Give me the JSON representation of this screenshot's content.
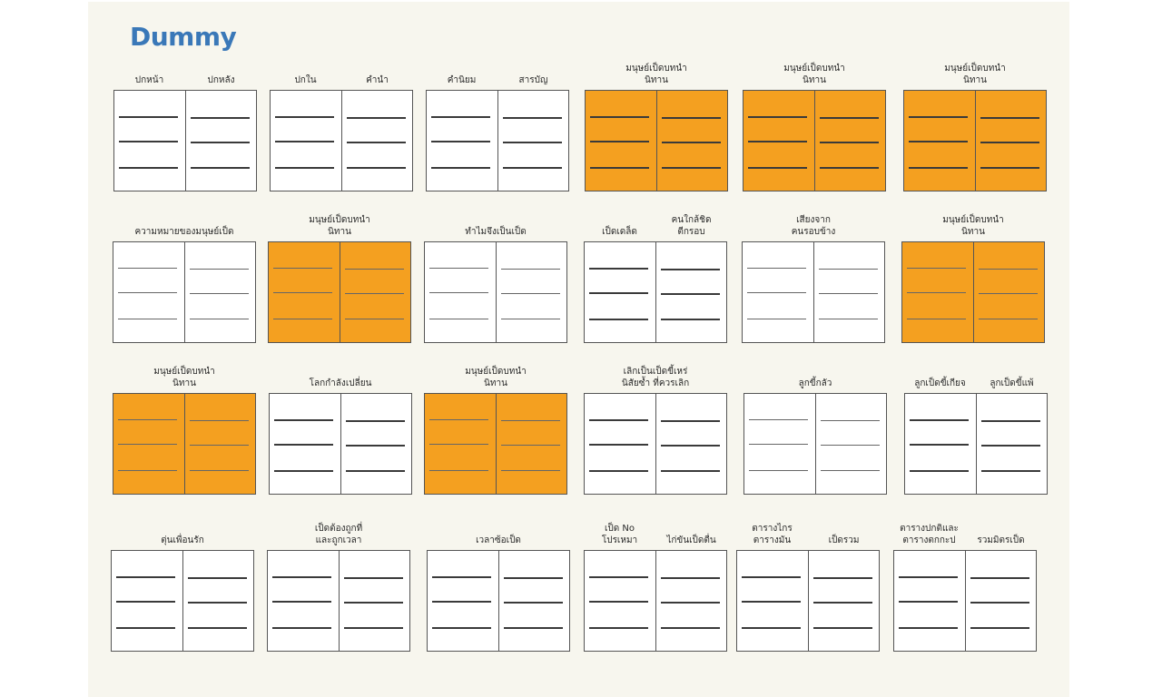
{
  "title": "Dummy",
  "colors": {
    "page": "#f7f6ee",
    "title": "#3a78b8",
    "filled_spread": "#f4a020",
    "blank_spread": "#ffffff"
  },
  "spreads": [
    {
      "labels": [
        "ปกหน้า",
        "ปกหลัง"
      ],
      "filled": false
    },
    {
      "labels": [
        "ปกใน",
        "คำนำ"
      ],
      "filled": false
    },
    {
      "labels": [
        "คำนิยม",
        "สารบัญ"
      ],
      "filled": false
    },
    {
      "labels": [
        "มนุษย์เป็ดบทนำ\nนิทาน"
      ],
      "filled": true
    },
    {
      "labels": [
        "มนุษย์เป็ดบทนำ\nนิทาน"
      ],
      "filled": true
    },
    {
      "labels": [
        "มนุษย์เป็ดบทนำ\nนิทาน"
      ],
      "filled": true
    },
    {
      "labels": [
        "ความหมายของมนุษย์เป็ด"
      ],
      "filled": false
    },
    {
      "labels": [
        "มนุษย์เป็ดบทนำ\nนิทาน"
      ],
      "filled": true
    },
    {
      "labels": [
        "ทำไมจึงเป็นเป็ด"
      ],
      "filled": false
    },
    {
      "labels": [
        "เป็ดเดล็ด",
        "คนใกล้ชิด\nตีกรอบ"
      ],
      "filled": false
    },
    {
      "labels": [
        "เสียงจาก\nคนรอบข้าง"
      ],
      "filled": false
    },
    {
      "labels": [
        "มนุษย์เป็ดบทนำ\nนิทาน"
      ],
      "filled": true
    },
    {
      "labels": [
        "มนุษย์เป็ดบทนำ\nนิทาน"
      ],
      "filled": true
    },
    {
      "labels": [
        "โลกกำลังเปลี่ยน"
      ],
      "filled": false
    },
    {
      "labels": [
        "มนุษย์เป็ดบทนำ\nนิทาน"
      ],
      "filled": true
    },
    {
      "labels": [
        "เลิกเป็นเป็ดขี้เหร่\nนิสัยซ้ำ ที่ควรเลิก"
      ],
      "filled": false
    },
    {
      "labels": [
        "ลูกขี้กลัว"
      ],
      "filled": false
    },
    {
      "labels": [
        "ลูกเป็ดขี้เกียจ",
        "ลูกเป็ดขี้แพ้"
      ],
      "filled": false
    },
    {
      "labels": [
        "ตุ่นเพื่อนรัก"
      ],
      "filled": false
    },
    {
      "labels": [
        "เป็ดต้องถูกที่\nและถูกเวลา"
      ],
      "filled": false
    },
    {
      "labels": [
        "เวลาซ้อเป็ด"
      ],
      "filled": false
    },
    {
      "labels": [
        "เป็ด No\nโปรเหมา",
        "ไก่ขันเป็ดตื่น"
      ],
      "filled": false
    },
    {
      "labels": [
        "ตารางไกร\nตารางมัน",
        "เป็ดรวม"
      ],
      "filled": false
    },
    {
      "labels": [
        "ตารางปกติและ\nตารางตกกะป",
        "รวมมิตรเป็ด"
      ],
      "filled": false
    }
  ]
}
